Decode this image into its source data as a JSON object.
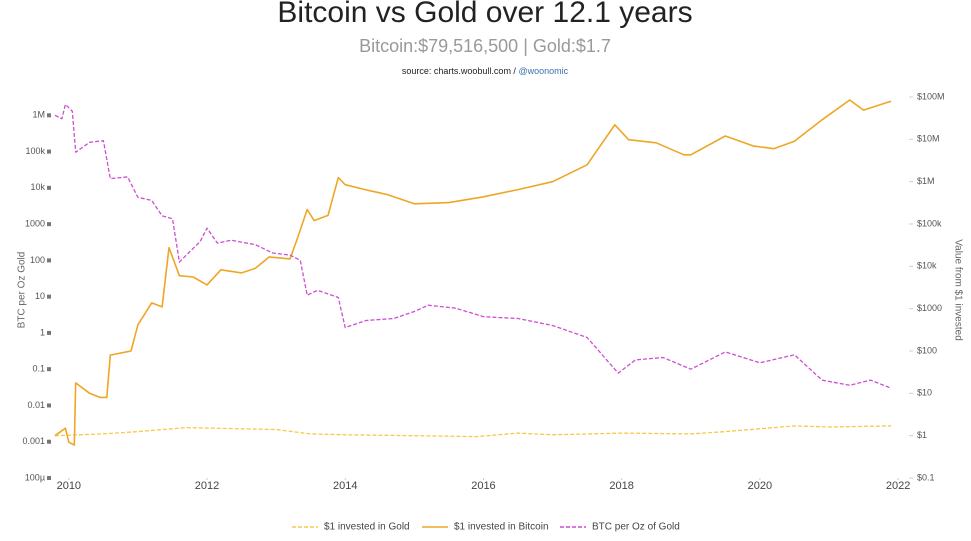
{
  "chart_data": {
    "type": "line",
    "title": "Bitcoin vs Gold over 12.1 years",
    "subtitle": "Bitcoin:$79,516,500 | Gold:$1.7",
    "source_text": "source: charts.woobull.com /",
    "source_link": "@woonomic",
    "ylabel": "BTC per Oz Gold",
    "y2label": "Value from $1 invested",
    "xlim": [
      2009.8,
      2022.1
    ],
    "xticks": [
      2010,
      2012,
      2014,
      2016,
      2018,
      2020,
      2022
    ],
    "ylim": [
      0.0001,
      3200000
    ],
    "ylog": true,
    "yticks": [
      {
        "value": 1000000,
        "label": "1M"
      },
      {
        "value": 100000,
        "label": "100k"
      },
      {
        "value": 10000,
        "label": "10k"
      },
      1000,
      100,
      10,
      1,
      0.1,
      0.01,
      0.001,
      {
        "value": 0.0001,
        "label": "100µ"
      }
    ],
    "y2lim": [
      0.1,
      100000000
    ],
    "y2log": true,
    "y2ticks": [
      {
        "value": 100000000,
        "label": "$100M"
      },
      {
        "value": 10000000,
        "label": "$10M"
      },
      {
        "value": 1000000,
        "label": "$1M"
      },
      {
        "value": 100000,
        "label": "$100k"
      },
      {
        "value": 10000,
        "label": "$10k"
      },
      {
        "value": 1000,
        "label": "$1000"
      },
      {
        "value": 100,
        "label": "$100"
      },
      {
        "value": 10,
        "label": "$10"
      },
      {
        "value": 1,
        "label": "$1"
      },
      {
        "value": 0.1,
        "label": "$0.1"
      }
    ],
    "legend": "bottom",
    "series": [
      {
        "name": "$1 invested in Gold",
        "color": "#f7c948",
        "style": "dashed",
        "axis": "y2",
        "x": [
          2009.8,
          2010.5,
          2011.0,
          2011.7,
          2012.5,
          2013.0,
          2013.5,
          2014.0,
          2015.0,
          2015.9,
          2016.5,
          2017.0,
          2018.0,
          2019.0,
          2019.5,
          2020.5,
          2021.0,
          2021.9
        ],
        "values": [
          1,
          1.1,
          1.25,
          1.55,
          1.45,
          1.4,
          1.1,
          1.05,
          1.0,
          0.95,
          1.15,
          1.05,
          1.15,
          1.1,
          1.25,
          1.7,
          1.6,
          1.7
        ]
      },
      {
        "name": "$1 invested in Bitcoin",
        "color": "#eea626",
        "style": "solid",
        "axis": "y2",
        "x": [
          2009.8,
          2009.95,
          2010.0,
          2010.08,
          2010.1,
          2010.3,
          2010.45,
          2010.55,
          2010.6,
          2010.9,
          2011.0,
          2011.2,
          2011.35,
          2011.45,
          2011.6,
          2011.8,
          2012.0,
          2012.2,
          2012.5,
          2012.7,
          2012.9,
          2013.2,
          2013.3,
          2013.45,
          2013.55,
          2013.75,
          2013.9,
          2014.0,
          2014.3,
          2014.6,
          2015.0,
          2015.5,
          2016.0,
          2016.5,
          2017.0,
          2017.5,
          2017.9,
          2018.1,
          2018.5,
          2018.9,
          2019.0,
          2019.5,
          2019.9,
          2020.2,
          2020.5,
          2020.9,
          2021.3,
          2021.5,
          2021.9
        ],
        "values": [
          1,
          1.5,
          0.7,
          0.6,
          17.6,
          10,
          8,
          8,
          80,
          100,
          415,
          1370,
          1100,
          27500,
          6000,
          5600,
          3650,
          8300,
          7000,
          9000,
          16700,
          15000,
          42000,
          220000,
          120000,
          160000,
          1250000,
          850000,
          640000,
          500000,
          300000,
          320000,
          440000,
          650000,
          1000000,
          2500000,
          22000000,
          9800000,
          8300000,
          4300000,
          4300000,
          12000000,
          7000000,
          6000000,
          9000000,
          29000000,
          85000000,
          49000000,
          79516500
        ]
      },
      {
        "name": "BTC per Oz of Gold",
        "color": "#cc4fd0",
        "style": "dashed",
        "axis": "y",
        "x": [
          2009.8,
          2009.9,
          2009.95,
          2010.05,
          2010.1,
          2010.3,
          2010.5,
          2010.6,
          2010.85,
          2011.0,
          2011.2,
          2011.35,
          2011.5,
          2011.6,
          2011.7,
          2011.9,
          2012.0,
          2012.15,
          2012.35,
          2012.7,
          2012.95,
          2013.2,
          2013.35,
          2013.45,
          2013.6,
          2013.9,
          2014.0,
          2014.3,
          2014.7,
          2015.0,
          2015.2,
          2015.6,
          2016.0,
          2016.5,
          2017.0,
          2017.5,
          2017.95,
          2018.2,
          2018.6,
          2019.0,
          2019.5,
          2020.0,
          2020.5,
          2020.9,
          2021.3,
          2021.6,
          2021.9
        ],
        "values": [
          1000000,
          800000,
          2000000,
          1300000,
          96000,
          180000,
          200000,
          18000,
          20000,
          5500,
          4500,
          1700,
          1400,
          90,
          140,
          330,
          770,
          300,
          360,
          270,
          160,
          140,
          100,
          11,
          15,
          9.5,
          1.4,
          2.2,
          2.5,
          3.9,
          5.8,
          4.8,
          2.8,
          2.5,
          1.6,
          0.75,
          0.078,
          0.18,
          0.21,
          0.1,
          0.3,
          0.15,
          0.25,
          0.05,
          0.036,
          0.05,
          0.03
        ]
      }
    ]
  }
}
